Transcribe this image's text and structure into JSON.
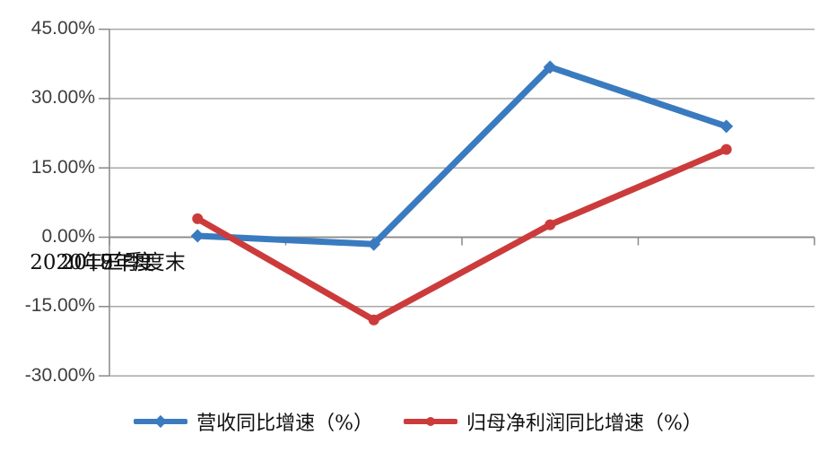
{
  "chart_data": {
    "type": "line",
    "title": "",
    "categories": [
      "2017年度",
      "2018年度",
      "2019年度",
      "2020年三季度末"
    ],
    "series": [
      {
        "name": "营收同比增速（%）",
        "color": "#3A7BBF",
        "marker": "diamond",
        "values": [
          0.3,
          -1.5,
          36.8,
          24.0
        ]
      },
      {
        "name": "归母净利润同比增速（%）",
        "color": "#CC3B3B",
        "marker": "circle",
        "values": [
          4.0,
          -17.9,
          2.7,
          19.0
        ]
      }
    ],
    "y_axis": {
      "min": -30,
      "max": 45,
      "step": 15,
      "unit": "%",
      "tick_labels": [
        "45.00%",
        "30.00%",
        "15.00%",
        "0.00%",
        "-15.00%",
        "-30.00%"
      ]
    },
    "grid": true,
    "legend_position": "bottom",
    "colors": {
      "gridline": "#A8A8A8",
      "axis": "#888888",
      "axis_text": "#3f3f3f",
      "background": "#ffffff"
    }
  }
}
